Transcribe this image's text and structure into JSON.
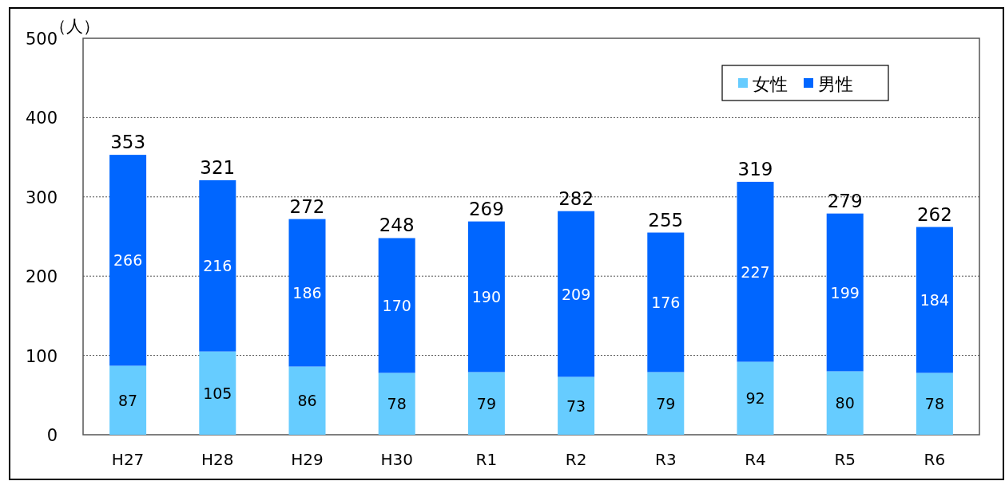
{
  "chart_data": {
    "type": "bar",
    "stacked": true,
    "ylabel": "（人）",
    "categories": [
      "H27",
      "H28",
      "H29",
      "H30",
      "R1",
      "R2",
      "R3",
      "R4",
      "R5",
      "R6"
    ],
    "series": [
      {
        "name": "女性",
        "color": "#66ccff",
        "values": [
          87,
          105,
          86,
          78,
          79,
          73,
          79,
          92,
          80,
          78
        ]
      },
      {
        "name": "男性",
        "color": "#0066ff",
        "values": [
          266,
          216,
          186,
          170,
          190,
          209,
          176,
          227,
          199,
          184
        ]
      }
    ],
    "totals": [
      "353",
      "321",
      "272",
      "248",
      "269",
      "282",
      "255",
      "319",
      "279",
      "262"
    ],
    "data_labels": true,
    "ylim": [
      0,
      500
    ],
    "yticks": [
      0,
      100,
      200,
      300,
      400,
      500
    ],
    "grid": "y",
    "legend": "top right"
  }
}
